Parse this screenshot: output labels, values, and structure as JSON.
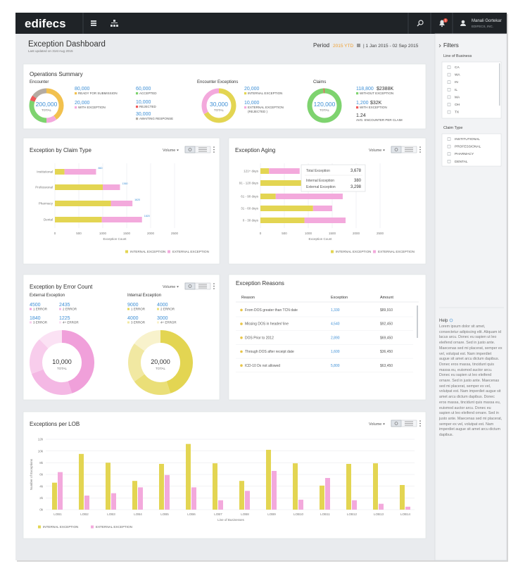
{
  "header": {
    "logo": "edifecs",
    "notifications": "3",
    "user_name": "Manali Gortekar",
    "company": "EDIFECS, INC."
  },
  "page": {
    "title": "Exception Dashboard",
    "updated": "Last updated on 31st Aug 2015",
    "period_label": "Period",
    "period_value": "2015 YTD",
    "period_range": "| 1 Jan 2015 - 02 Sep 2015"
  },
  "operations_summary": {
    "title": "Operations Summary",
    "encounter": {
      "title": "Encounter",
      "total": "200,000",
      "total_label": "TOTAL",
      "items": [
        {
          "value": 80000,
          "label": "80,000",
          "name": "READY FOR SUBMISSION",
          "color": "#f2c14e"
        },
        {
          "value": 20000,
          "label": "20,000",
          "name": "WITH  EXCEPTION",
          "color": "#f3a9dc"
        },
        {
          "value": 60000,
          "label": "60,000",
          "name": "ACCEPTED",
          "color": "#7ed36f"
        },
        {
          "value": 10000,
          "label": "10,000",
          "name": "REJECTED",
          "color": "#ef5a5a"
        },
        {
          "value": 30000,
          "label": "30,000",
          "name": "AWAITING RESPONSE",
          "color": "#b5aca2"
        }
      ]
    },
    "encounter_exceptions": {
      "title": "Encounter Exceptions",
      "total": "30,000",
      "total_label": "TOTAL",
      "items": [
        {
          "value": 20000,
          "label": "20,000",
          "name": "INTERNAL EXCEPTION",
          "color": "#e3d552"
        },
        {
          "value": 10000,
          "label": "10,000",
          "name": "EXTERNAL EXCEPTION",
          "sub": "(REJECTED )",
          "color": "#f3a9dc"
        }
      ]
    },
    "claims": {
      "title": "Claims",
      "total": "120,000",
      "total_label": "TOTAL",
      "items": [
        {
          "value": 118800,
          "label": "118,800",
          "amount": "$2388K",
          "name": "WITHOUT EXCEPTION",
          "color": "#7ed36f"
        },
        {
          "value": 1200,
          "label": "1,200",
          "amount": "$32K",
          "name": "WITH EXCEPTION",
          "color": "#ef5a5a"
        }
      ],
      "average": {
        "value": 1.24,
        "name": "AVG. ENCOUNTER PER CLAIM"
      }
    }
  },
  "claim_type": {
    "type": "hbar",
    "title": "Exception by Claim Type",
    "control": "Volume",
    "categories": [
      "Institutional",
      "Professional",
      "Pharmacy",
      "Dental"
    ],
    "series": [
      {
        "name": "INTERNAL EXCEPTION",
        "color": "#e3d552",
        "values": [
          200,
          1000,
          1170,
          980
        ]
      },
      {
        "name": "EXTERNAL EXCEPTION",
        "color": "#f3a9dc",
        "values": [
          660,
          360,
          450,
          840
        ]
      }
    ],
    "total_labels": [
      "860",
      "1360",
      "1620",
      "1820"
    ],
    "xlim": [
      0,
      2500
    ],
    "xticks": [
      0,
      500,
      1000,
      1500,
      2000,
      2500
    ],
    "xlabel": "Exception Count"
  },
  "aging": {
    "type": "hbar",
    "title": "Exception Aging",
    "control": "Volume",
    "categories": [
      "121+ days",
      "91 - 120 days",
      "61 - 90 days",
      "31 - 60 days",
      "0 - 30 days"
    ],
    "series": [
      {
        "name": "INTERNAL EXCEPTION",
        "color": "#e3d552",
        "values": [
          180,
          880,
          320,
          1100,
          920
        ]
      },
      {
        "name": "EXTERNAL EXCEPTION",
        "color": "#f3a9dc",
        "values": [
          640,
          470,
          1400,
          400,
          860
        ]
      }
    ],
    "xlim": [
      0,
      2500
    ],
    "xticks": [
      0,
      500,
      1000,
      1500,
      2000,
      2500
    ],
    "xlabel": "Exception Count",
    "tooltip": [
      {
        "label": "Total Exception",
        "value": "3,678"
      },
      {
        "label": "Internal Exception",
        "value": "380"
      },
      {
        "label": "External Exception",
        "value": "3,298"
      }
    ]
  },
  "error_count": {
    "title": "Exception by Error Count",
    "control": "Volume",
    "external": {
      "title": "External Exception",
      "total": "10,000",
      "total_label": "TOTAL",
      "items": [
        {
          "value": 4500,
          "name": "1 ERROR",
          "color": "#f0a0da"
        },
        {
          "value": 2435,
          "name": "2 ERROR",
          "color": "#f4b8e4"
        },
        {
          "value": 1840,
          "name": "3 ERROR",
          "color": "#f8cdec"
        },
        {
          "value": 1225,
          "name": "4+ ERROR",
          "color": "#fbe2f4"
        }
      ]
    },
    "internal": {
      "title": "Internal Exception",
      "total": "20,000",
      "total_label": "TOTAL",
      "items": [
        {
          "value": 9000,
          "name": "1 ERROR",
          "color": "#e3d552"
        },
        {
          "value": 4000,
          "name": "2 ERROR",
          "color": "#eadf78"
        },
        {
          "value": 4000,
          "name": "3 ERROR",
          "color": "#f1e8a2"
        },
        {
          "value": 3000,
          "name": "4+ ERROR",
          "color": "#f8f2cc"
        }
      ]
    }
  },
  "reasons": {
    "title": "Exception Reasons",
    "columns": [
      "Reason",
      "Exception",
      "Amount"
    ],
    "rows": [
      [
        "From DOS greater than TCN date",
        "1,330",
        "$89,910"
      ],
      [
        "Missing DOS in header/ line",
        "4,540",
        "$92,450"
      ],
      [
        "DOS Prior to 2012",
        "2,890",
        "$69,450"
      ],
      [
        "Through DOS after receipt date",
        "1,600",
        "$36,450"
      ],
      [
        "ICD-10 Dx not allowed",
        "5,800",
        "$63,450"
      ]
    ]
  },
  "lob": {
    "type": "bar",
    "title": "Exceptions per LOB",
    "control": "Volume",
    "categories": [
      "LOB1",
      "LOB2",
      "LOB3",
      "LOB4",
      "LOB5",
      "LOB6",
      "LOB7",
      "LOB8",
      "LOB9",
      "LOB10",
      "LOB11",
      "LOB12",
      "LOB13",
      "LOB14"
    ],
    "series": [
      {
        "name": "INTERNAL EXCEPTION",
        "color": "#e3d552",
        "values": [
          4.6,
          9.5,
          8.0,
          4.9,
          7.8,
          11.2,
          7.9,
          4.9,
          10.2,
          7.9,
          4.1,
          7.8,
          7.9,
          4.2
        ]
      },
      {
        "name": "EXTERNAL EXCEPTION",
        "color": "#f3a9dc",
        "values": [
          6.4,
          2.4,
          2.8,
          3.8,
          5.9,
          3.8,
          1.6,
          3.2,
          6.6,
          1.7,
          5.4,
          1.6,
          1.0,
          0.5
        ]
      }
    ],
    "ylim": [
      0,
      12
    ],
    "yticks": [
      {
        "value": 0,
        "label": "0k"
      },
      {
        "value": 2,
        "label": "2k"
      },
      {
        "value": 4,
        "label": "4k"
      },
      {
        "value": 6,
        "label": "6k"
      },
      {
        "value": 8,
        "label": "8k"
      },
      {
        "value": 10,
        "label": "10k"
      },
      {
        "value": 12,
        "label": "12k"
      }
    ],
    "ylabel": "Number of Exceptions",
    "xlabel": "Line of Businesses",
    "grid": true
  },
  "filters": {
    "title": "Filters",
    "groups": [
      {
        "title": "Line of Business",
        "options": [
          "CA",
          "WA",
          "IN",
          "IL",
          "MA",
          "OH",
          "TX"
        ]
      },
      {
        "title": "Claim Type",
        "options": [
          "INSTITUTIONAL",
          "PROFESSIONAL",
          "PHARMACY",
          "DENTAL"
        ]
      }
    ]
  },
  "help": {
    "title": "Help",
    "text": "Lorem ipsum dolor sit amet, consectetur adipiscing elit. Aliquam id lacus arcu. Donec eu sapien ut leo eleifend ornare. Sed in justo ante. Maecenas sed mi placerat, semper ex vel, volutpat est. Nam imperdiet augue sit amet arcu dictum dapibus. Donec eros massa, tincidunt quis massa eu, euismod auctor arcu. Donec eu sapien ut leo eleifend ornare. Sed in justo ante. Maecenas sed mi placerat, semper ex vel, volutpat est. Nam imperdiet augue sit amet arcu dictum dapibus. Donec eros massa, tincidunt quis massa eu, euismod auctor arcu. Donec eu sapien ut leo eleifend ornare. Sed in justo ante. Maecenas sed mi placerat, semper ex vel, volutpat est. Nam imperdiet augue sit amet arcu dictum dapibus."
  }
}
